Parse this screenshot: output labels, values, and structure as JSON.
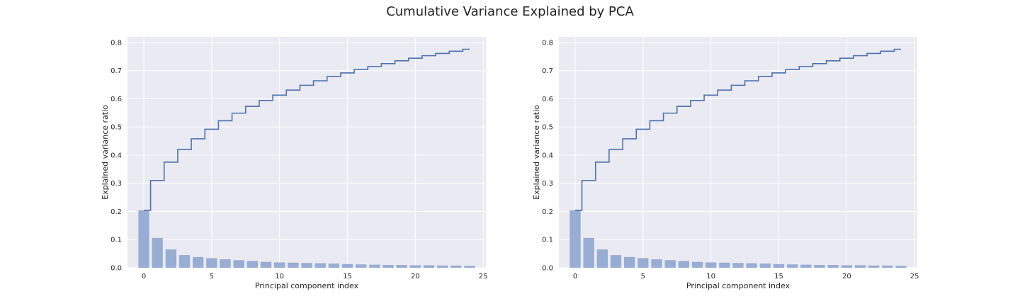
{
  "figure": {
    "title": "Cumulative Variance Explained by PCA",
    "colors": {
      "background": "#eaeaf2",
      "grid": "#ffffff",
      "bar": "#98add3",
      "line": "#4c72b0"
    }
  },
  "chart_data": [
    {
      "type": "bar",
      "overlay": "step",
      "title": "",
      "xlabel": "Principal component index",
      "ylabel": "Explained variance ratio",
      "xlim": [
        -1.2,
        25.2
      ],
      "ylim": [
        0,
        0.82
      ],
      "xticks": [
        0,
        5,
        10,
        15,
        20,
        25
      ],
      "xtick_labels": [
        "0",
        "5",
        "10",
        "15",
        "20",
        "25"
      ],
      "yticks": [
        0.0,
        0.1,
        0.2,
        0.3,
        0.4,
        0.5,
        0.6,
        0.7,
        0.8
      ],
      "ytick_labels": [
        "0.0",
        "0.1",
        "0.2",
        "0.3",
        "0.4",
        "0.5",
        "0.6",
        "0.7",
        "0.8"
      ],
      "grid": true,
      "x": [
        0,
        1,
        2,
        3,
        4,
        5,
        6,
        7,
        8,
        9,
        10,
        11,
        12,
        13,
        14,
        15,
        16,
        17,
        18,
        19,
        20,
        21,
        22,
        23,
        24
      ],
      "series": [
        {
          "kind": "bar",
          "values": [
            0.204,
            0.106,
            0.065,
            0.045,
            0.038,
            0.034,
            0.03,
            0.027,
            0.024,
            0.021,
            0.019,
            0.018,
            0.017,
            0.016,
            0.015,
            0.013,
            0.012,
            0.011,
            0.01,
            0.01,
            0.009,
            0.009,
            0.008,
            0.008,
            0.007
          ]
        },
        {
          "kind": "step",
          "values": [
            0.204,
            0.31,
            0.375,
            0.42,
            0.458,
            0.492,
            0.522,
            0.549,
            0.573,
            0.594,
            0.613,
            0.631,
            0.648,
            0.664,
            0.679,
            0.692,
            0.704,
            0.715,
            0.725,
            0.735,
            0.744,
            0.753,
            0.761,
            0.769,
            0.776
          ]
        }
      ]
    },
    {
      "type": "bar",
      "overlay": "step",
      "title": "",
      "xlabel": "Principal component index",
      "ylabel": "Explained variance ratio",
      "xlim": [
        -1.2,
        25.2
      ],
      "ylim": [
        0,
        0.82
      ],
      "xticks": [
        0,
        5,
        10,
        15,
        20,
        25
      ],
      "xtick_labels": [
        "0",
        "5",
        "10",
        "15",
        "20",
        "25"
      ],
      "yticks": [
        0.0,
        0.1,
        0.2,
        0.3,
        0.4,
        0.5,
        0.6,
        0.7,
        0.8
      ],
      "ytick_labels": [
        "0.0",
        "0.1",
        "0.2",
        "0.3",
        "0.4",
        "0.5",
        "0.6",
        "0.7",
        "0.8"
      ],
      "grid": true,
      "x": [
        0,
        1,
        2,
        3,
        4,
        5,
        6,
        7,
        8,
        9,
        10,
        11,
        12,
        13,
        14,
        15,
        16,
        17,
        18,
        19,
        20,
        21,
        22,
        23,
        24
      ],
      "series": [
        {
          "kind": "bar",
          "values": [
            0.204,
            0.106,
            0.065,
            0.045,
            0.038,
            0.034,
            0.03,
            0.027,
            0.024,
            0.021,
            0.019,
            0.018,
            0.017,
            0.016,
            0.015,
            0.013,
            0.012,
            0.011,
            0.01,
            0.01,
            0.009,
            0.009,
            0.008,
            0.008,
            0.007
          ]
        },
        {
          "kind": "step",
          "values": [
            0.204,
            0.31,
            0.375,
            0.42,
            0.458,
            0.492,
            0.522,
            0.549,
            0.573,
            0.594,
            0.613,
            0.631,
            0.648,
            0.664,
            0.679,
            0.692,
            0.704,
            0.715,
            0.725,
            0.735,
            0.744,
            0.753,
            0.761,
            0.769,
            0.776
          ]
        }
      ]
    }
  ]
}
